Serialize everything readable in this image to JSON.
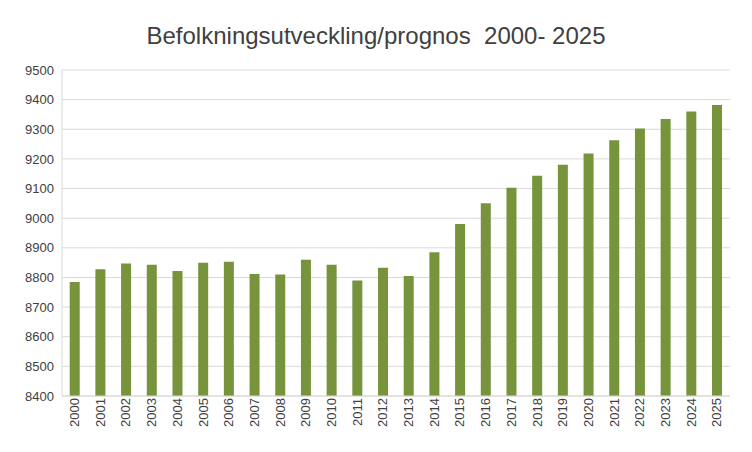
{
  "chart_data": {
    "type": "bar",
    "title": "Befolkningsutveckling/prognos  2000- 2025",
    "categories": [
      "2000",
      "2001",
      "2002",
      "2003",
      "2004",
      "2005",
      "2006",
      "2007",
      "2008",
      "2009",
      "2010",
      "2011",
      "2012",
      "2013",
      "2014",
      "2015",
      "2016",
      "2017",
      "2018",
      "2019",
      "2020",
      "2021",
      "2022",
      "2023",
      "2024",
      "2025"
    ],
    "values": [
      8785,
      8828,
      8847,
      8843,
      8822,
      8850,
      8853,
      8812,
      8810,
      8860,
      8843,
      8790,
      8833,
      8805,
      8885,
      8980,
      9050,
      9103,
      9143,
      9180,
      9218,
      9263,
      9303,
      9335,
      9360,
      9382
    ],
    "color": "#77933c",
    "ylim": [
      8400,
      9500
    ],
    "yticks": [
      8400,
      8500,
      8600,
      8700,
      8800,
      8900,
      9000,
      9100,
      9200,
      9300,
      9400,
      9500
    ],
    "grid": true
  }
}
